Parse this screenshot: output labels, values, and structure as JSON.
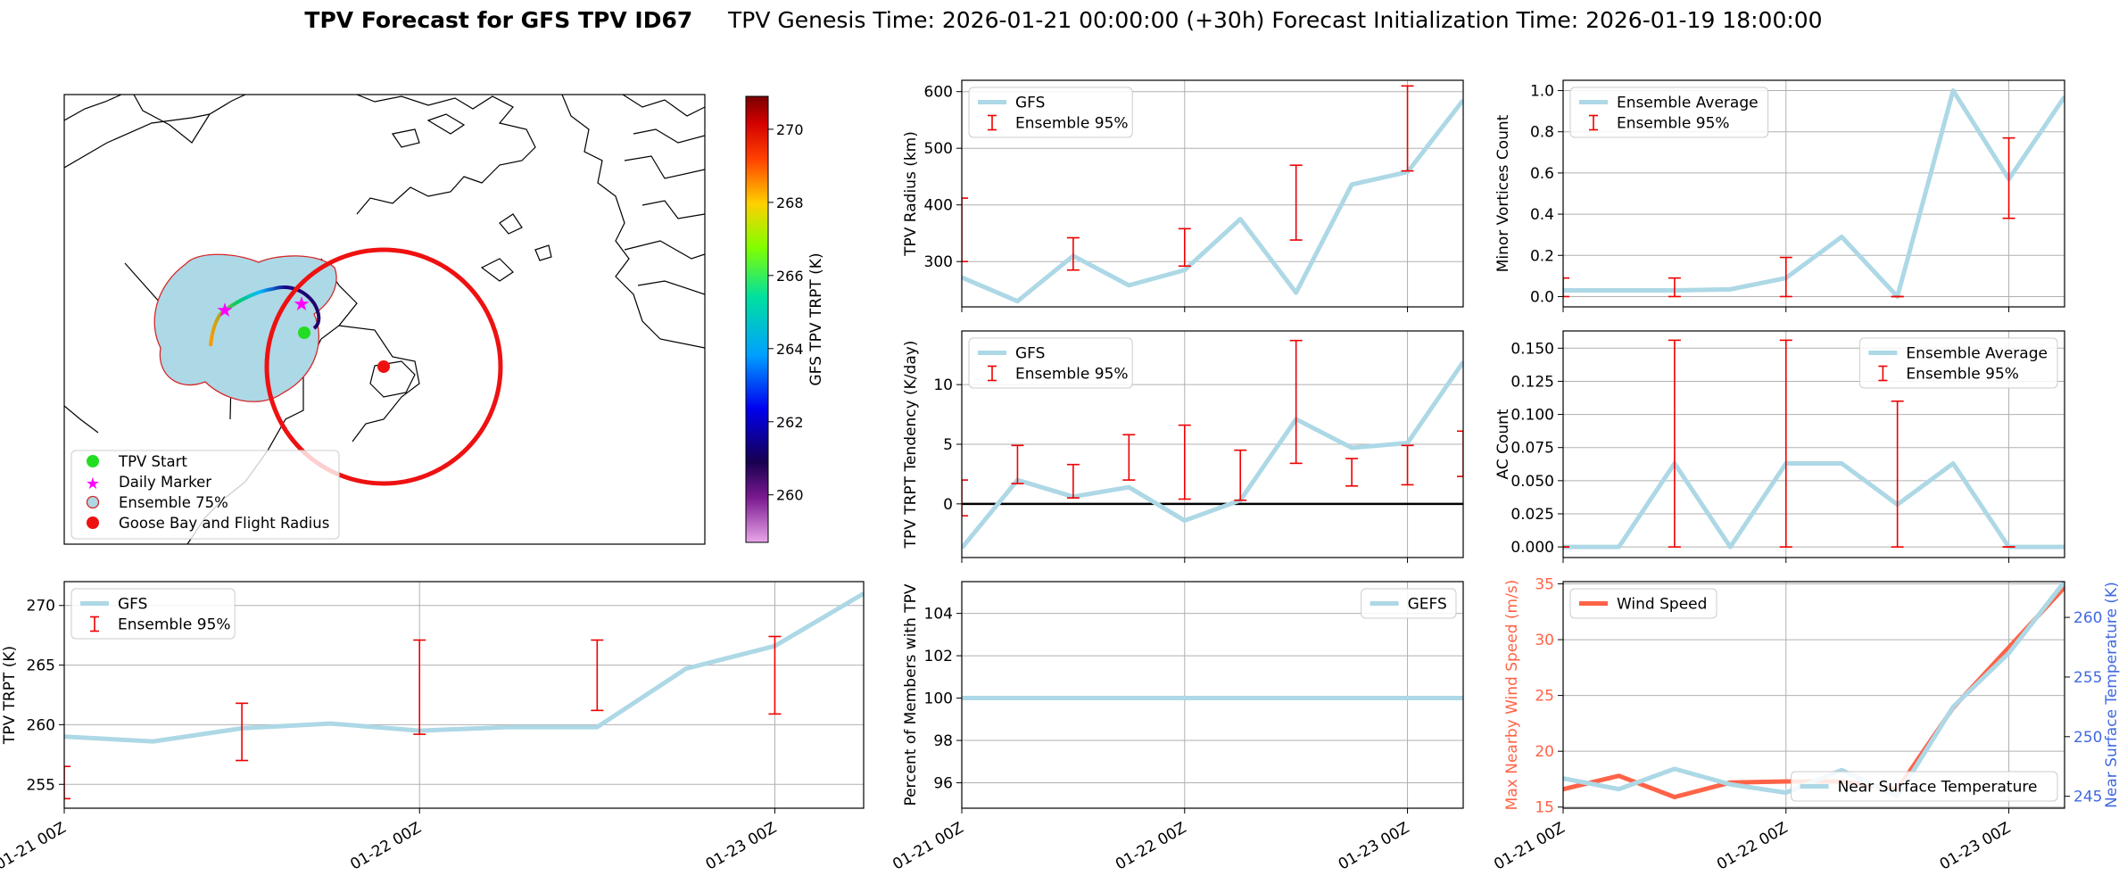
{
  "figure": {
    "title_bold": "TPV Forecast for GFS TPV ID67",
    "title_rest": "TPV Genesis Time: 2026-01-21 00:00:00 (+30h)   Forecast Initialization Time: 2026-01-19 18:00:00"
  },
  "map": {
    "legend": [
      "TPV Start",
      "Daily Marker",
      "Ensemble 75%",
      "Goose Bay and Flight Radius"
    ],
    "colors": {
      "ensemble_fill": "#add8e6",
      "ensemble_edge": "#d62728",
      "start": "#22dd22",
      "marker": "#ff00ff",
      "goose_bay": "#ee1111"
    },
    "colorbar": {
      "label": "GFS TPV TRPT (K)",
      "ticks": [
        260,
        262,
        264,
        266,
        268,
        270
      ],
      "range": [
        258.7,
        270.9
      ]
    }
  },
  "chart_data": [
    {
      "id": "radius",
      "type": "line",
      "ylabel": "TPV Radius (km)",
      "ylim": [
        220,
        620
      ],
      "yticks": [
        300,
        400,
        500,
        600
      ],
      "x": [
        0,
        0.25,
        0.5,
        0.75,
        1.0,
        1.25,
        1.5,
        1.75,
        2.0,
        2.25
      ],
      "series": [
        {
          "name": "GFS",
          "values": [
            272,
            230,
            310,
            258,
            285,
            375,
            245,
            436,
            458,
            585
          ]
        }
      ],
      "errorbars": {
        "name": "Ensemble 95%",
        "x": [
          0,
          0.5,
          1.0,
          1.5,
          2.0
        ],
        "low": [
          300,
          285,
          292,
          338,
          460
        ],
        "high": [
          412,
          342,
          358,
          470,
          610
        ]
      },
      "legend": "top-left",
      "show_xticks": false
    },
    {
      "id": "minor",
      "type": "line",
      "ylabel": "Minor Vortices Count",
      "ylim": [
        -0.05,
        1.05
      ],
      "yticks": [
        0.0,
        0.2,
        0.4,
        0.6,
        0.8,
        1.0
      ],
      "ytick_labels": [
        "0.0",
        "0.2",
        "0.4",
        "0.6",
        "0.8",
        "1.0"
      ],
      "x": [
        0,
        0.25,
        0.5,
        0.75,
        1.0,
        1.25,
        1.5,
        1.75,
        2.0,
        2.25
      ],
      "series": [
        {
          "name": "Ensemble Average",
          "values": [
            0.03,
            0.03,
            0.03,
            0.035,
            0.09,
            0.29,
            0.0,
            1.0,
            0.57,
            0.97
          ]
        }
      ],
      "errorbars": {
        "name": "Ensemble 95%",
        "x": [
          0,
          0.5,
          1.0,
          1.5,
          2.0
        ],
        "low": [
          0.0,
          0.0,
          0.0,
          0.0,
          0.38
        ],
        "high": [
          0.09,
          0.09,
          0.19,
          0.0,
          0.77
        ]
      },
      "legend": "top-left",
      "show_xticks": false
    },
    {
      "id": "tendency",
      "type": "line",
      "ylabel": "TPV TRPT Tendency (K/day)",
      "ylim": [
        -4.5,
        14.5
      ],
      "yticks": [
        0,
        5,
        10
      ],
      "x": [
        0,
        0.25,
        0.5,
        0.75,
        1.0,
        1.25,
        1.5,
        1.75,
        2.0,
        2.25
      ],
      "series": [
        {
          "name": "GFS",
          "values": [
            -3.7,
            2.0,
            0.6,
            1.4,
            -1.4,
            0.3,
            7.1,
            4.7,
            5.1,
            11.9
          ]
        }
      ],
      "zero_line": true,
      "errorbars": {
        "name": "Ensemble 95%",
        "x": [
          0,
          0.25,
          0.5,
          0.75,
          1.0,
          1.25,
          1.5,
          1.75,
          2.0,
          2.25
        ],
        "low": [
          -1.0,
          1.7,
          0.5,
          2.0,
          0.4,
          0.3,
          3.4,
          1.5,
          1.6,
          2.3
        ],
        "high": [
          2.0,
          4.9,
          3.3,
          5.8,
          6.6,
          4.5,
          13.7,
          3.8,
          4.9,
          6.1
        ]
      },
      "legend": "top-left",
      "show_xticks": false
    },
    {
      "id": "ac",
      "type": "line",
      "ylabel": "AC Count",
      "ylim": [
        -0.008,
        0.163
      ],
      "yticks": [
        0.0,
        0.025,
        0.05,
        0.075,
        0.1,
        0.125,
        0.15
      ],
      "ytick_labels": [
        "0.000",
        "0.025",
        "0.050",
        "0.075",
        "0.100",
        "0.125",
        "0.150"
      ],
      "x": [
        0,
        0.25,
        0.5,
        0.75,
        1.0,
        1.25,
        1.5,
        1.75,
        2.0,
        2.25
      ],
      "series": [
        {
          "name": "Ensemble Average",
          "values": [
            0.0,
            0.0,
            0.063,
            0.0,
            0.063,
            0.063,
            0.032,
            0.063,
            0.0,
            0.0
          ]
        }
      ],
      "errorbars": {
        "name": "Ensemble 95%",
        "x": [
          0,
          0.5,
          1.0,
          1.5,
          2.0
        ],
        "low": [
          0.0,
          0.0,
          0.0,
          0.0,
          0.0
        ],
        "high": [
          0.0,
          0.156,
          0.156,
          0.11,
          0.0
        ]
      },
      "legend": "top-right",
      "show_xticks": false
    },
    {
      "id": "trpt",
      "type": "line",
      "ylabel": "TPV TRPT (K)",
      "ylim": [
        253,
        272
      ],
      "yticks": [
        255,
        260,
        265,
        270
      ],
      "x": [
        0,
        0.25,
        0.5,
        0.75,
        1.0,
        1.25,
        1.5,
        1.75,
        2.0,
        2.25
      ],
      "series": [
        {
          "name": "GFS",
          "values": [
            259.0,
            258.6,
            259.7,
            260.1,
            259.5,
            259.8,
            259.8,
            264.7,
            266.6,
            271.0
          ]
        }
      ],
      "errorbars": {
        "name": "Ensemble 95%",
        "x": [
          0,
          0.5,
          1.0,
          1.5,
          2.0
        ],
        "low": [
          253.8,
          257.0,
          259.2,
          261.2,
          260.9
        ],
        "high": [
          256.5,
          261.8,
          267.1,
          267.1,
          267.4
        ]
      },
      "legend": "top-left",
      "show_xticks": true
    },
    {
      "id": "percent",
      "type": "line",
      "ylabel": "Percent of Members with TPV",
      "ylim": [
        94.8,
        105.5
      ],
      "yticks": [
        96,
        98,
        100,
        102,
        104
      ],
      "x": [
        0,
        0.25,
        0.5,
        0.75,
        1.0,
        1.25,
        1.5,
        1.75,
        2.0,
        2.25
      ],
      "series": [
        {
          "name": "GEFS",
          "values": [
            100,
            100,
            100,
            100,
            100,
            100,
            100,
            100,
            100,
            100
          ]
        }
      ],
      "legend": "top-right",
      "show_xticks": true
    },
    {
      "id": "wind",
      "type": "line",
      "ylabel": "Max Nearby Wind Speed (m/s)",
      "ylim": [
        14.9,
        35.2
      ],
      "yticks": [
        15,
        20,
        25,
        30,
        35
      ],
      "ylabel_right": "Near Surface Temperature (K)",
      "ylim_right": [
        244,
        263
      ],
      "yticks_right": [
        245,
        250,
        255,
        260
      ],
      "x": [
        0,
        0.25,
        0.5,
        0.75,
        1.0,
        1.25,
        1.5,
        1.75,
        2.0,
        2.25
      ],
      "series": [
        {
          "name": "Wind Speed",
          "values": [
            16.6,
            17.8,
            15.9,
            17.2,
            17.3,
            17.3,
            16.6,
            23.9,
            29.3,
            34.7
          ]
        },
        {
          "name": "Near Surface Temperature",
          "values": [
            246.5,
            245.6,
            247.3,
            246.0,
            245.3,
            247.2,
            245.0,
            252.5,
            257.0,
            263.0
          ],
          "axis": "right"
        }
      ],
      "legend": "split",
      "show_xticks": true
    }
  ],
  "xaxis": {
    "xlim": [
      0,
      2.25
    ],
    "ticks": [
      0,
      1,
      2
    ],
    "labels": [
      "01-21 00Z",
      "01-22 00Z",
      "01-23 00Z"
    ]
  },
  "colors": {
    "line": "#add8e6",
    "err": "#ee0000",
    "wind": "#ff6347",
    "temp_axis": "#4169e1",
    "grid": "#b0b0b0"
  }
}
